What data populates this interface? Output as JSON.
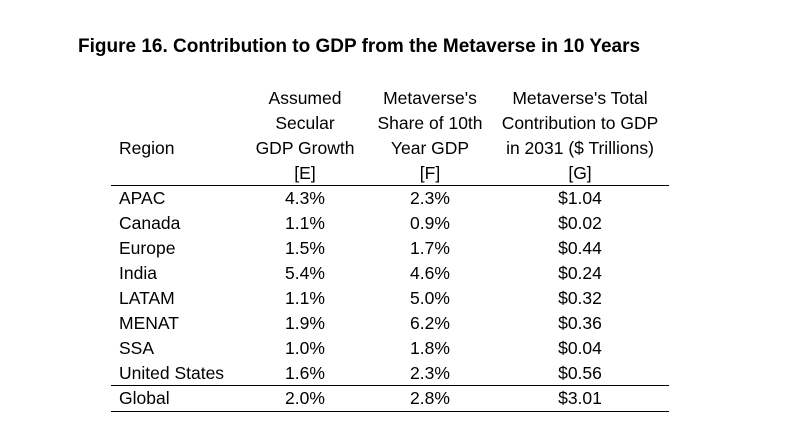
{
  "title": "Figure 16. Contribution to GDP from the Metaverse in 10 Years",
  "table": {
    "headers": {
      "region": "Region",
      "growth": [
        "Assumed",
        "Secular",
        "GDP Growth",
        "[E]"
      ],
      "share": [
        "Metaverse's",
        "Share of 10th",
        "Year GDP",
        "[F]"
      ],
      "contribution": [
        "Metaverse's Total",
        "Contribution to GDP",
        "in 2031 ($ Trillions)",
        "[G]"
      ]
    },
    "rows": [
      {
        "region": "APAC",
        "growth": "4.3%",
        "share": "2.3%",
        "contribution": "$1.04"
      },
      {
        "region": "Canada",
        "growth": "1.1%",
        "share": "0.9%",
        "contribution": "$0.02"
      },
      {
        "region": "Europe",
        "growth": "1.5%",
        "share": "1.7%",
        "contribution": "$0.44"
      },
      {
        "region": "India",
        "growth": "5.4%",
        "share": "4.6%",
        "contribution": "$0.24"
      },
      {
        "region": "LATAM",
        "growth": "1.1%",
        "share": "5.0%",
        "contribution": "$0.32"
      },
      {
        "region": "MENAT",
        "growth": "1.9%",
        "share": "6.2%",
        "contribution": "$0.36"
      },
      {
        "region": "SSA",
        "growth": "1.0%",
        "share": "1.8%",
        "contribution": "$0.04"
      },
      {
        "region": "United States",
        "growth": "1.6%",
        "share": "2.3%",
        "contribution": "$0.56"
      }
    ],
    "total": {
      "region": "Global",
      "growth": "2.0%",
      "share": "2.8%",
      "contribution": "$3.01"
    }
  }
}
